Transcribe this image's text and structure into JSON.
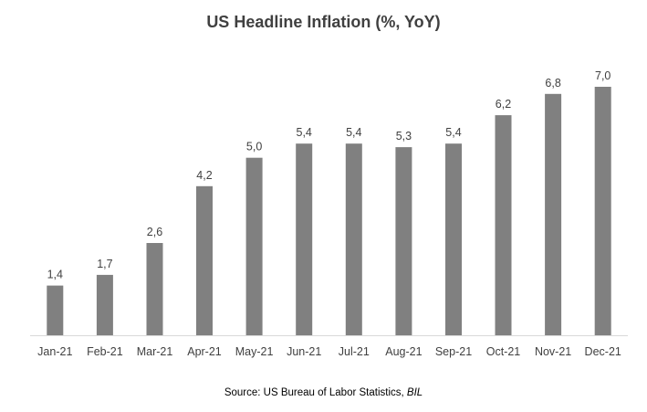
{
  "chart_data": {
    "type": "bar",
    "title": "US Headline Inflation (%, YoY)",
    "categories": [
      "Jan-21",
      "Feb-21",
      "Mar-21",
      "Apr-21",
      "May-21",
      "Jun-21",
      "Jul-21",
      "Aug-21",
      "Sep-21",
      "Oct-21",
      "Nov-21",
      "Dec-21"
    ],
    "values": [
      1.4,
      1.7,
      2.6,
      4.2,
      5.0,
      5.4,
      5.4,
      5.3,
      5.4,
      6.2,
      6.8,
      7.0
    ],
    "data_labels": [
      "1,4",
      "1,7",
      "2,6",
      "4,2",
      "5,0",
      "5,4",
      "5,4",
      "5,3",
      "5,4",
      "6,2",
      "6,8",
      "7,0"
    ],
    "xlabel": "",
    "ylabel": "",
    "ylim": [
      0,
      7.0
    ],
    "grid": false,
    "legend": "none",
    "bar_color": "#808080",
    "axis_color": "#d9d9d9"
  },
  "source": {
    "prefix": "Source: US Bureau of Labor Statistics, ",
    "emphasis": "BIL"
  }
}
